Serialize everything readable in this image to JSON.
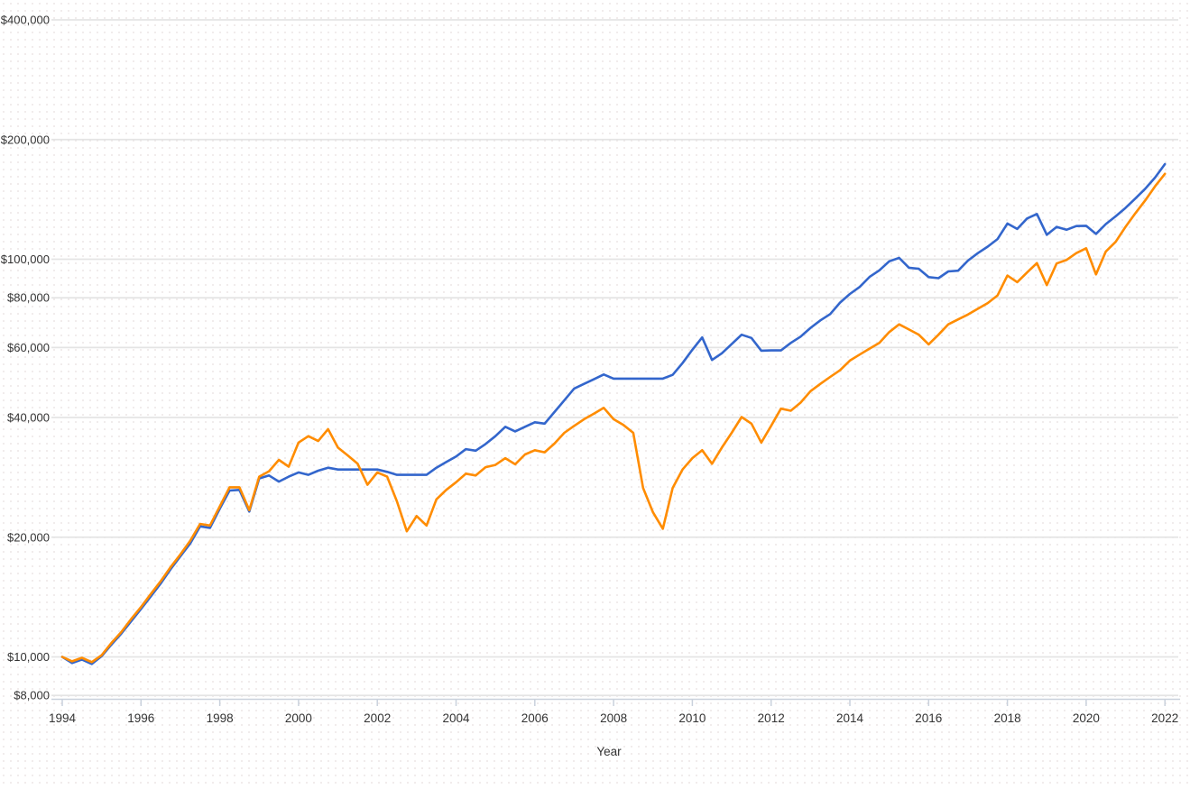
{
  "page": {
    "background_color": "#ffffff",
    "title": "",
    "legend": "none"
  },
  "chart_data": {
    "type": "line",
    "title": "",
    "xlabel": "Year",
    "ylabel": "",
    "grid": true,
    "y_scale": "log",
    "x_axis": {
      "tick_years": [
        1994,
        1996,
        1998,
        2000,
        2002,
        2004,
        2006,
        2008,
        2010,
        2012,
        2014,
        2016,
        2018,
        2020,
        2022
      ],
      "min": 1993.7,
      "max": 2022.35
    },
    "y_axis": {
      "ticks": [
        {
          "label": "$400,000",
          "value": 400000
        },
        {
          "label": "$200,000",
          "value": 200000
        },
        {
          "label": "$100,000",
          "value": 100000
        },
        {
          "label": "$80,000",
          "value": 80000
        },
        {
          "label": "$60,000",
          "value": 60000
        },
        {
          "label": "$40,000",
          "value": 40000
        },
        {
          "label": "$20,000",
          "value": 20000
        },
        {
          "label": "$10,000",
          "value": 10000
        },
        {
          "label": "$8,000",
          "value": 8000
        }
      ],
      "min": 8000,
      "max": 400000
    },
    "colors": {
      "grid": "#e4e4e4",
      "axis": "#c9d1dc",
      "tick_text": "#333333",
      "blue_series": "#3366cc",
      "orange_series": "#ff8c00"
    },
    "x": [
      1994,
      1994.25,
      1994.5,
      1994.75,
      1995,
      1995.25,
      1995.5,
      1995.75,
      1996,
      1996.25,
      1996.5,
      1996.75,
      1997,
      1997.25,
      1997.5,
      1997.75,
      1998,
      1998.25,
      1998.5,
      1998.75,
      1999,
      1999.25,
      1999.5,
      1999.75,
      2000,
      2000.25,
      2000.5,
      2000.75,
      2001,
      2001.25,
      2001.5,
      2001.75,
      2002,
      2002.25,
      2002.5,
      2002.75,
      2003,
      2003.25,
      2003.5,
      2003.75,
      2004,
      2004.25,
      2004.5,
      2004.75,
      2005,
      2005.25,
      2005.5,
      2005.75,
      2006,
      2006.25,
      2006.5,
      2006.75,
      2007,
      2007.25,
      2007.5,
      2007.75,
      2008,
      2008.25,
      2008.5,
      2008.75,
      2009,
      2009.25,
      2009.5,
      2009.75,
      2010,
      2010.25,
      2010.5,
      2010.75,
      2011,
      2011.25,
      2011.5,
      2011.75,
      2012,
      2012.25,
      2012.5,
      2012.75,
      2013,
      2013.25,
      2013.5,
      2013.75,
      2014,
      2014.25,
      2014.5,
      2014.75,
      2015,
      2015.25,
      2015.5,
      2015.75,
      2016,
      2016.25,
      2016.5,
      2016.75,
      2017,
      2017.25,
      2017.5,
      2017.75,
      2018,
      2018.25,
      2018.5,
      2018.75,
      2019,
      2019.25,
      2019.5,
      2019.75,
      2020,
      2020.25,
      2020.5,
      2020.75,
      2021,
      2021.25,
      2021.5,
      2021.75,
      2022
    ],
    "series": [
      {
        "name": "blue-series",
        "color": "#3366cc",
        "values": [
          10000,
          9650,
          9850,
          9600,
          10050,
          10750,
          11450,
          12300,
          13200,
          14200,
          15300,
          16600,
          17900,
          19300,
          21300,
          21100,
          23600,
          26200,
          26300,
          23200,
          28100,
          28600,
          27600,
          28400,
          29100,
          28700,
          29400,
          29900,
          29600,
          29600,
          29600,
          29600,
          29600,
          29200,
          28700,
          28700,
          28700,
          28700,
          29900,
          30900,
          31900,
          33300,
          33000,
          34300,
          35900,
          37900,
          36900,
          37900,
          38900,
          38600,
          41300,
          44200,
          47300,
          48600,
          49900,
          51300,
          50100,
          50100,
          50100,
          50100,
          50100,
          50100,
          51200,
          54800,
          59200,
          63600,
          55800,
          58000,
          61200,
          64600,
          63400,
          58900,
          59000,
          59000,
          61600,
          63900,
          67200,
          70200,
          72800,
          77800,
          81800,
          85200,
          90300,
          93800,
          98800,
          100800,
          95200,
          94600,
          90200,
          89600,
          93200,
          93600,
          99200,
          103600,
          107600,
          112400,
          123000,
          119200,
          126600,
          130000,
          115200,
          120600,
          118600,
          121200,
          121400,
          115800,
          122600,
          128200,
          134600,
          142200,
          150400,
          160500,
          173500
        ]
      },
      {
        "name": "orange-series",
        "color": "#ff8c00",
        "values": [
          10000,
          9750,
          9950,
          9700,
          10100,
          10850,
          11550,
          12450,
          13350,
          14400,
          15500,
          16800,
          18100,
          19600,
          21600,
          21400,
          23900,
          26700,
          26700,
          23400,
          28400,
          29300,
          31300,
          30100,
          34600,
          35900,
          34900,
          37400,
          33600,
          32100,
          30600,
          27100,
          29100,
          28400,
          24600,
          20700,
          22600,
          21400,
          24900,
          26300,
          27500,
          28900,
          28600,
          30000,
          30400,
          31600,
          30500,
          32300,
          33100,
          32700,
          34400,
          36600,
          38100,
          39600,
          40900,
          42300,
          39600,
          38300,
          36600,
          26600,
          23100,
          21000,
          26600,
          29600,
          31600,
          33100,
          30600,
          33600,
          36600,
          40100,
          38600,
          34600,
          38100,
          42100,
          41600,
          43600,
          46600,
          48600,
          50600,
          52600,
          55600,
          57600,
          59600,
          61600,
          65600,
          68600,
          66600,
          64600,
          61100,
          64600,
          68600,
          70600,
          72600,
          75100,
          77600,
          81100,
          91000,
          87600,
          92600,
          97800,
          86100,
          97600,
          99600,
          103600,
          106600,
          91600,
          104600,
          110600,
          120600,
          130600,
          140600,
          152600,
          164000
        ]
      }
    ]
  }
}
